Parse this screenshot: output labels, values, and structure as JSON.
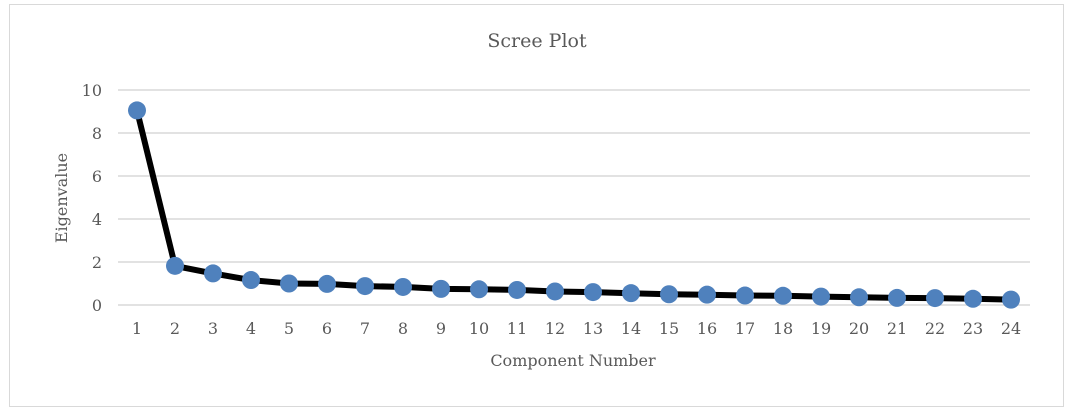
{
  "chart_data": {
    "type": "line",
    "title": "Scree Plot",
    "xlabel": "Component Number",
    "ylabel": "Eigenvalue",
    "x": [
      1,
      2,
      3,
      4,
      5,
      6,
      7,
      8,
      9,
      10,
      11,
      12,
      13,
      14,
      15,
      16,
      17,
      18,
      19,
      20,
      21,
      22,
      23,
      24
    ],
    "ylim": [
      0,
      10
    ],
    "yticks": [
      0,
      2,
      4,
      6,
      8,
      10
    ],
    "grid": true,
    "legend": "none",
    "series": [
      {
        "values": [
          9.05,
          1.82,
          1.47,
          1.16,
          1.0,
          0.98,
          0.88,
          0.84,
          0.75,
          0.73,
          0.7,
          0.63,
          0.6,
          0.55,
          0.5,
          0.48,
          0.44,
          0.43,
          0.39,
          0.36,
          0.33,
          0.32,
          0.29,
          0.25
        ],
        "line_color": "#000000",
        "marker_color": "#4f81bd"
      }
    ],
    "colors": {
      "grid": "#d9d9d9",
      "text": "#595959",
      "border": "#d9d9d9"
    }
  }
}
